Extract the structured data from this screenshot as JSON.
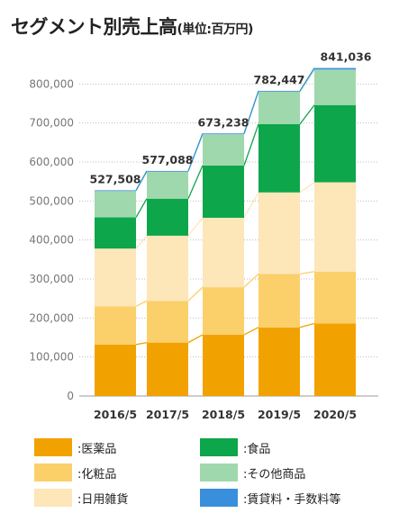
{
  "title": "セグメント別売上高",
  "title_unit": "(単位:百万円)",
  "chart_data": {
    "type": "bar",
    "stacked": true,
    "categories": [
      "2016/5",
      "2017/5",
      "2018/5",
      "2019/5",
      "2020/5"
    ],
    "ylim": [
      0,
      840000
    ],
    "yticks": [
      0,
      100000,
      200000,
      300000,
      400000,
      500000,
      600000,
      700000,
      800000
    ],
    "ytick_labels": [
      "0",
      "100,000",
      "200,000",
      "300,000",
      "400,000",
      "500,000",
      "600,000",
      "700,000",
      "800,000"
    ],
    "totals": [
      527508,
      577088,
      673238,
      782447,
      841036
    ],
    "total_labels": [
      "527,508",
      "577,088",
      "673,238",
      "782,447",
      "841,036"
    ],
    "series": [
      {
        "name": "医薬品",
        "color": "#f2a200",
        "values": [
          132000,
          137000,
          157000,
          176000,
          186000
        ]
      },
      {
        "name": "化粧品",
        "color": "#fbd06a",
        "values": [
          98000,
          107000,
          122000,
          137000,
          133000
        ]
      },
      {
        "name": "日用雑貨",
        "color": "#fde6b8",
        "values": [
          148000,
          167000,
          178000,
          209000,
          229000
        ]
      },
      {
        "name": "食品",
        "color": "#0ea64b",
        "values": [
          80000,
          95000,
          134000,
          175000,
          198000
        ]
      },
      {
        "name": "その他商品",
        "color": "#9fd8ad",
        "values": [
          67500,
          69088,
          80238,
          83447,
          91036
        ]
      },
      {
        "name": "賃貸料・手数料等",
        "color": "#3a8fdc",
        "values": [
          2008,
          2000,
          2000,
          2000,
          4000
        ]
      }
    ],
    "grid": "horizontal dotted",
    "connector_lines": true,
    "legend_position": "bottom"
  },
  "legend": {
    "prefix": ":",
    "items": [
      "医薬品",
      "化粧品",
      "日用雑貨",
      "食品",
      "その他商品",
      "賃貸料・手数料等"
    ]
  }
}
